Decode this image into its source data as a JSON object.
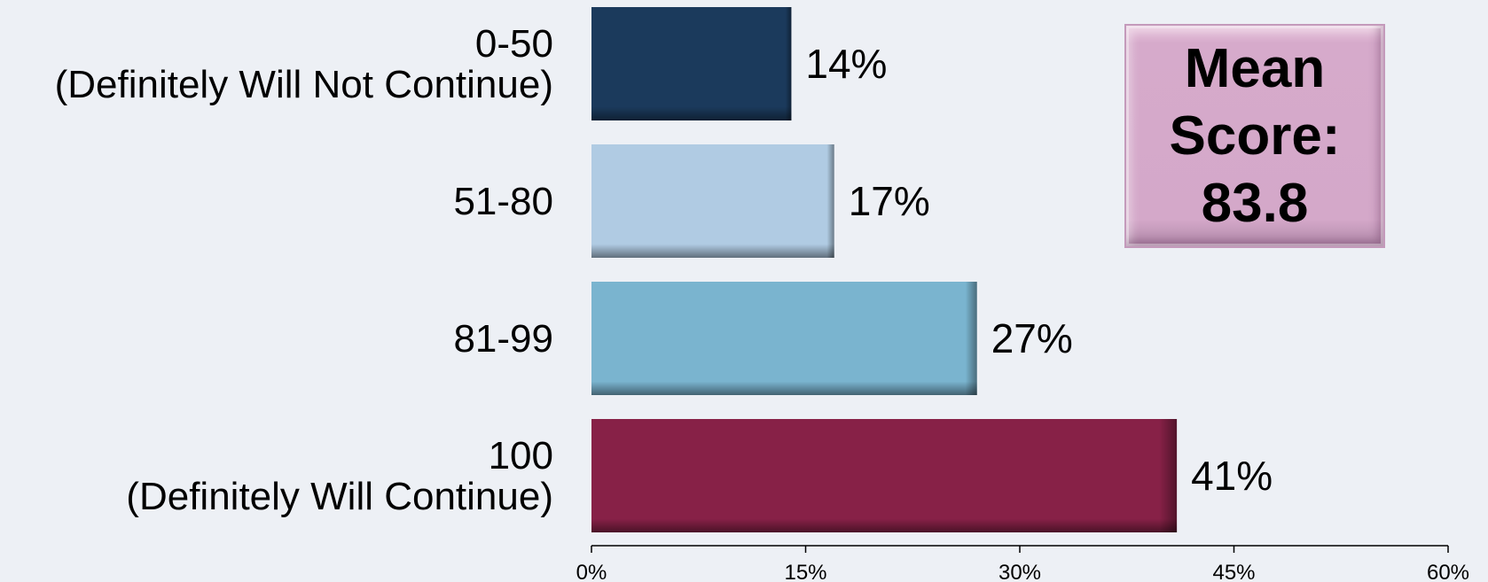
{
  "chart_data": {
    "type": "bar",
    "orientation": "horizontal",
    "categories": [
      [
        "0-50",
        "(Definitely Will Not Continue)"
      ],
      [
        "51-80"
      ],
      [
        "81-99"
      ],
      [
        "100",
        "(Definitely Will Continue)"
      ]
    ],
    "values": [
      14,
      17,
      27,
      41
    ],
    "value_labels": [
      "14%",
      "17%",
      "27%",
      "41%"
    ],
    "colors": [
      "#1b3a5c",
      "#b0cbe3",
      "#7ab4cf",
      "#872147"
    ],
    "xlim": [
      0,
      60
    ],
    "xticks": [
      0,
      15,
      30,
      45,
      60
    ],
    "xtick_labels": [
      "0%",
      "15%",
      "30%",
      "45%",
      "60%"
    ],
    "grid": false,
    "title": "",
    "xlabel": "",
    "ylabel": ""
  },
  "mean_box": {
    "line1": "Mean",
    "line2": "Score:",
    "line3": "83.8",
    "background": "#d4a8c9"
  }
}
